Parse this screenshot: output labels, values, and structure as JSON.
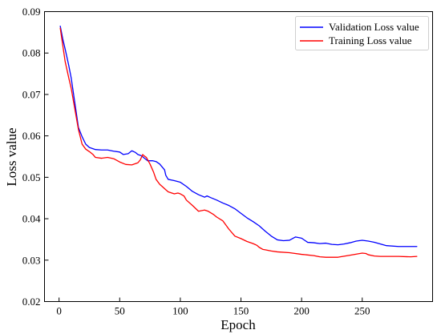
{
  "chart_data": {
    "type": "line",
    "xlabel": "Epoch",
    "ylabel": "Loss value",
    "xlim": [
      -12,
      308
    ],
    "ylim": [
      0.02,
      0.09
    ],
    "xticks": [
      0,
      50,
      100,
      150,
      200,
      250
    ],
    "xtick_labels": [
      "0",
      "50",
      "100",
      "150",
      "200",
      "250"
    ],
    "yticks": [
      0.02,
      0.03,
      0.04,
      0.05,
      0.06,
      0.07,
      0.08,
      0.09
    ],
    "ytick_labels": [
      "0.02",
      "0.03",
      "0.04",
      "0.05",
      "0.06",
      "0.07",
      "0.08",
      "0.09"
    ],
    "grid": false,
    "legend_position": "top-right",
    "series": [
      {
        "name": "Validation Loss value",
        "color": "#0000ff",
        "x": [
          1,
          3,
          5,
          8,
          10,
          13,
          16,
          19,
          22,
          25,
          30,
          35,
          40,
          45,
          50,
          53,
          57,
          60,
          63,
          65,
          68,
          70,
          73,
          77,
          80,
          83,
          85,
          87,
          88,
          90,
          95,
          100,
          105,
          110,
          115,
          120,
          122,
          125,
          130,
          135,
          140,
          145,
          150,
          155,
          160,
          165,
          170,
          175,
          180,
          185,
          190,
          195,
          200,
          205,
          210,
          215,
          220,
          225,
          230,
          235,
          240,
          245,
          250,
          255,
          260,
          265,
          270,
          280,
          290,
          295
        ],
        "y": [
          0.0865,
          0.0835,
          0.081,
          0.077,
          0.074,
          0.068,
          0.062,
          0.0598,
          0.058,
          0.0572,
          0.0567,
          0.0566,
          0.0566,
          0.0563,
          0.0561,
          0.0555,
          0.0557,
          0.0564,
          0.056,
          0.0555,
          0.0552,
          0.0547,
          0.054,
          0.054,
          0.0538,
          0.0532,
          0.0525,
          0.0518,
          0.0505,
          0.0495,
          0.0492,
          0.0488,
          0.0478,
          0.0466,
          0.0458,
          0.0452,
          0.0455,
          0.0451,
          0.0445,
          0.0438,
          0.0432,
          0.0424,
          0.0413,
          0.0402,
          0.0393,
          0.0383,
          0.037,
          0.0358,
          0.0349,
          0.0347,
          0.0348,
          0.0356,
          0.0353,
          0.0343,
          0.0342,
          0.034,
          0.0341,
          0.0338,
          0.0337,
          0.0339,
          0.0342,
          0.0346,
          0.0348,
          0.0346,
          0.0343,
          0.0339,
          0.0335,
          0.0333,
          0.0333,
          0.0333
        ]
      },
      {
        "name": "Training Loss value",
        "color": "#ff0000",
        "x": [
          1,
          3,
          5,
          8,
          10,
          13,
          16,
          19,
          22,
          25,
          28,
          30,
          35,
          40,
          45,
          50,
          55,
          60,
          65,
          67,
          69,
          70,
          72,
          75,
          78,
          80,
          83,
          85,
          88,
          90,
          93,
          95,
          98,
          100,
          103,
          105,
          110,
          115,
          120,
          123,
          127,
          130,
          135,
          140,
          145,
          150,
          155,
          160,
          163,
          165,
          168,
          170,
          175,
          180,
          190,
          200,
          210,
          215,
          220,
          225,
          230,
          240,
          250,
          253,
          255,
          260,
          265,
          270,
          280,
          290,
          295
        ],
        "y": [
          0.086,
          0.082,
          0.078,
          0.074,
          0.0715,
          0.0665,
          0.0615,
          0.058,
          0.0568,
          0.0562,
          0.0555,
          0.0548,
          0.0546,
          0.0548,
          0.0545,
          0.0537,
          0.0531,
          0.053,
          0.0535,
          0.0542,
          0.0555,
          0.0552,
          0.0548,
          0.0532,
          0.0512,
          0.0495,
          0.0483,
          0.0478,
          0.047,
          0.0465,
          0.0462,
          0.046,
          0.0462,
          0.046,
          0.0455,
          0.0445,
          0.0432,
          0.0418,
          0.0421,
          0.0418,
          0.0411,
          0.0404,
          0.0395,
          0.0375,
          0.0358,
          0.0352,
          0.0345,
          0.034,
          0.0336,
          0.0331,
          0.0326,
          0.0325,
          0.0322,
          0.032,
          0.0318,
          0.0314,
          0.0311,
          0.0308,
          0.0307,
          0.0307,
          0.0307,
          0.0312,
          0.0317,
          0.0316,
          0.0313,
          0.031,
          0.0309,
          0.0309,
          0.0309,
          0.0308,
          0.0309
        ]
      }
    ]
  }
}
